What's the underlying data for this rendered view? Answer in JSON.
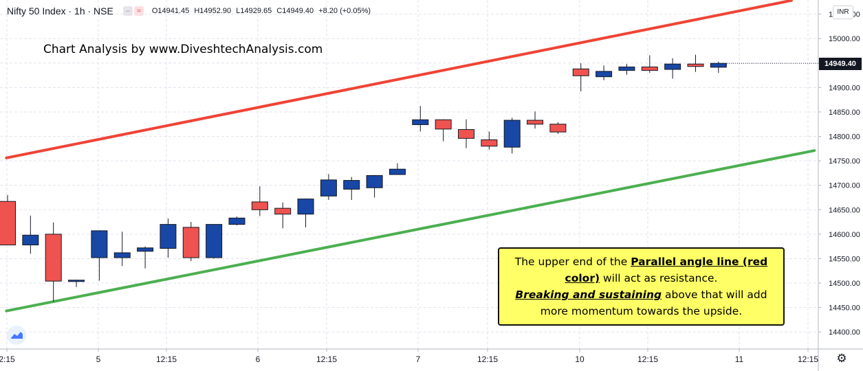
{
  "legend": {
    "symbol": "Nifty 50 Index · 1h · NSE",
    "open": "O14941.45",
    "high": "H14952.90",
    "low": "L14929.65",
    "close": "C14949.40",
    "change": "+8.20 (+0.05%)"
  },
  "watermark": "Chart Analysis by www.DiveshtechAnalysis.com",
  "note": {
    "line1_prefix": "The upper end of the ",
    "line1_em": "Parallel angle line (red color)",
    "line1_suffix": " will act as resistance.",
    "line2_em": "Breaking and sustaining",
    "line2_suffix": " above that will add more momentum towards the upside."
  },
  "currency": "INR",
  "last_price": "14949.40",
  "colors": {
    "up": "#1847a6",
    "down": "#ef5350",
    "resistance": "#ef4436",
    "support": "#4caf50",
    "grid": "#e0e3eb"
  },
  "chart_data": {
    "type": "candlestick",
    "y_ticks": [
      "15050.00",
      "15000.00",
      "14950.00",
      "14900.00",
      "14850.00",
      "14800.00",
      "14750.00",
      "14700.00",
      "14650.00",
      "14600.00",
      "14550.00",
      "14500.00",
      "14450.00",
      "14400.00"
    ],
    "x_ticks": [
      "2:15",
      "5",
      "12:15",
      "6",
      "12:15",
      "7",
      "12:15",
      "10",
      "12:15",
      "11",
      "12:15"
    ],
    "ylim": [
      14365,
      15080
    ],
    "candles": [
      {
        "o": 14667,
        "h": 14680,
        "l": 14578,
        "c": 14578
      },
      {
        "o": 14578,
        "h": 14638,
        "l": 14560,
        "c": 14598
      },
      {
        "o": 14600,
        "h": 14624,
        "l": 14462,
        "c": 14504
      },
      {
        "o": 14504,
        "h": 14507,
        "l": 14492,
        "c": 14506
      },
      {
        "o": 14552,
        "h": 14608,
        "l": 14505,
        "c": 14607
      },
      {
        "o": 14552,
        "h": 14605,
        "l": 14535,
        "c": 14562
      },
      {
        "o": 14565,
        "h": 14575,
        "l": 14530,
        "c": 14572
      },
      {
        "o": 14571,
        "h": 14632,
        "l": 14552,
        "c": 14620
      },
      {
        "o": 14614,
        "h": 14625,
        "l": 14545,
        "c": 14552
      },
      {
        "o": 14552,
        "h": 14620,
        "l": 14550,
        "c": 14620
      },
      {
        "o": 14620,
        "h": 14636,
        "l": 14618,
        "c": 14633
      },
      {
        "o": 14666,
        "h": 14698,
        "l": 14637,
        "c": 14650
      },
      {
        "o": 14653,
        "h": 14665,
        "l": 14612,
        "c": 14641
      },
      {
        "o": 14641,
        "h": 14673,
        "l": 14614,
        "c": 14672
      },
      {
        "o": 14678,
        "h": 14723,
        "l": 14670,
        "c": 14711
      },
      {
        "o": 14692,
        "h": 14717,
        "l": 14670,
        "c": 14710
      },
      {
        "o": 14695,
        "h": 14721,
        "l": 14675,
        "c": 14720
      },
      {
        "o": 14722,
        "h": 14745,
        "l": 14722,
        "c": 14733
      },
      {
        "o": 14824,
        "h": 14862,
        "l": 14810,
        "c": 14834
      },
      {
        "o": 14834,
        "h": 14835,
        "l": 14790,
        "c": 14815
      },
      {
        "o": 14814,
        "h": 14835,
        "l": 14776,
        "c": 14796
      },
      {
        "o": 14793,
        "h": 14810,
        "l": 14773,
        "c": 14780
      },
      {
        "o": 14778,
        "h": 14838,
        "l": 14765,
        "c": 14833
      },
      {
        "o": 14833,
        "h": 14851,
        "l": 14816,
        "c": 14825
      },
      {
        "o": 14825,
        "h": 14829,
        "l": 14805,
        "c": 14809
      },
      {
        "o": 14938,
        "h": 14950,
        "l": 14892,
        "c": 14924
      },
      {
        "o": 14922,
        "h": 14945,
        "l": 14915,
        "c": 14933
      },
      {
        "o": 14935,
        "h": 14948,
        "l": 14926,
        "c": 14942
      },
      {
        "o": 14942,
        "h": 14966,
        "l": 14930,
        "c": 14935
      },
      {
        "o": 14937,
        "h": 14960,
        "l": 14918,
        "c": 14948
      },
      {
        "o": 14948,
        "h": 14967,
        "l": 14932,
        "c": 14943
      },
      {
        "o": 14941.45,
        "h": 14952.9,
        "l": 14929.65,
        "c": 14949.4
      }
    ],
    "lines": [
      {
        "name": "resistance",
        "start_index": -0.05,
        "start_value": 14756,
        "end_index": 34.18,
        "end_value": 15078
      },
      {
        "name": "support",
        "start_index": -0.05,
        "start_value": 14443,
        "end_index": 35.18,
        "end_value": 14771
      }
    ]
  }
}
